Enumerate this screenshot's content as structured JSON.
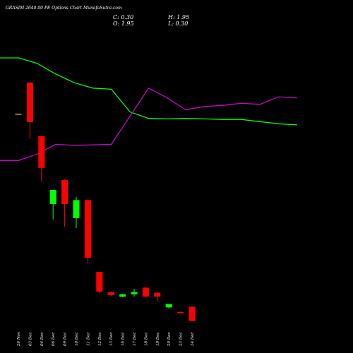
{
  "header": {
    "title": "GRASIM 2640.00 PE Options Chart MunafaSutra.com",
    "close": "C: 0.30",
    "high": "H: 1.95",
    "open": "O: 1.95",
    "low": "L: 0.30"
  },
  "colors": {
    "background": "#000000",
    "up": "#00ff00",
    "down": "#ff0000",
    "neutral": "#c8a000",
    "ema_green": "#00ff00",
    "ema_magenta": "#cc00cc",
    "text": "#ffffff"
  },
  "chart_data": [
    {
      "type": "line",
      "panel": "upper",
      "series": [
        {
          "color": "#00ff00",
          "values": [
            100,
            100,
            95,
            85,
            77,
            72,
            71,
            50,
            44,
            43.5,
            44,
            43.5,
            43,
            43,
            41,
            39,
            38
          ]
        },
        {
          "color": "#cc00cc",
          "values": [
            5,
            5,
            11,
            20,
            19,
            19.5,
            20,
            46,
            72,
            63,
            52,
            55,
            56,
            58,
            57,
            64,
            63
          ]
        }
      ]
    },
    {
      "type": "candlestick",
      "panel": "lower",
      "categories": [
        "26 Nov",
        "03 Dec",
        "04 Dec",
        "06 Dec",
        "09 Dec",
        "10 Dec",
        "11 Dec",
        "12 Dec",
        "13 Dec",
        "16 Dec",
        "17 Dec",
        "18 Dec",
        "19 Dec",
        "20 Dec",
        "23 Dec",
        "24 Dec"
      ],
      "candles": [
        {
          "o": 30.0,
          "h": 30.0,
          "l": 29.6,
          "c": 29.8
        },
        {
          "o": 41.0,
          "h": 41.2,
          "l": 21.0,
          "c": 27.0
        },
        {
          "o": 22.0,
          "h": 22.2,
          "l": 6.0,
          "c": 10.8
        },
        {
          "o": -2.0,
          "h": 3.0,
          "l": -7.5,
          "c": 3.0
        },
        {
          "o": 6.5,
          "h": 6.8,
          "l": -10.0,
          "c": -2.0
        },
        {
          "o": -7.0,
          "h": 0.6,
          "l": -10.5,
          "c": -0.6
        },
        {
          "o": -0.6,
          "h": -0.4,
          "l": -23.0,
          "c": -21.0
        },
        {
          "o": -26.0,
          "h": -26.0,
          "l": -33.5,
          "c": -33.0
        },
        {
          "o": -33.2,
          "h": -33.0,
          "l": -34.5,
          "c": -34.2
        },
        {
          "o": -34.8,
          "h": -33.8,
          "l": -35.0,
          "c": -34.0
        },
        {
          "o": -34.0,
          "h": -32.0,
          "l": -34.8,
          "c": -33.2
        },
        {
          "o": -31.6,
          "h": -31.4,
          "l": -35.0,
          "c": -34.8
        },
        {
          "o": -33.4,
          "h": -33.0,
          "l": -36.5,
          "c": -34.8
        },
        {
          "o": -38.6,
          "h": -37.8,
          "l": -39.0,
          "c": -37.4
        },
        {
          "o": -40.2,
          "h": -40.0,
          "l": -40.8,
          "c": -40.6
        },
        {
          "o": -38.4,
          "h": -38.2,
          "l": -43.5,
          "c": -43.4
        }
      ]
    }
  ]
}
